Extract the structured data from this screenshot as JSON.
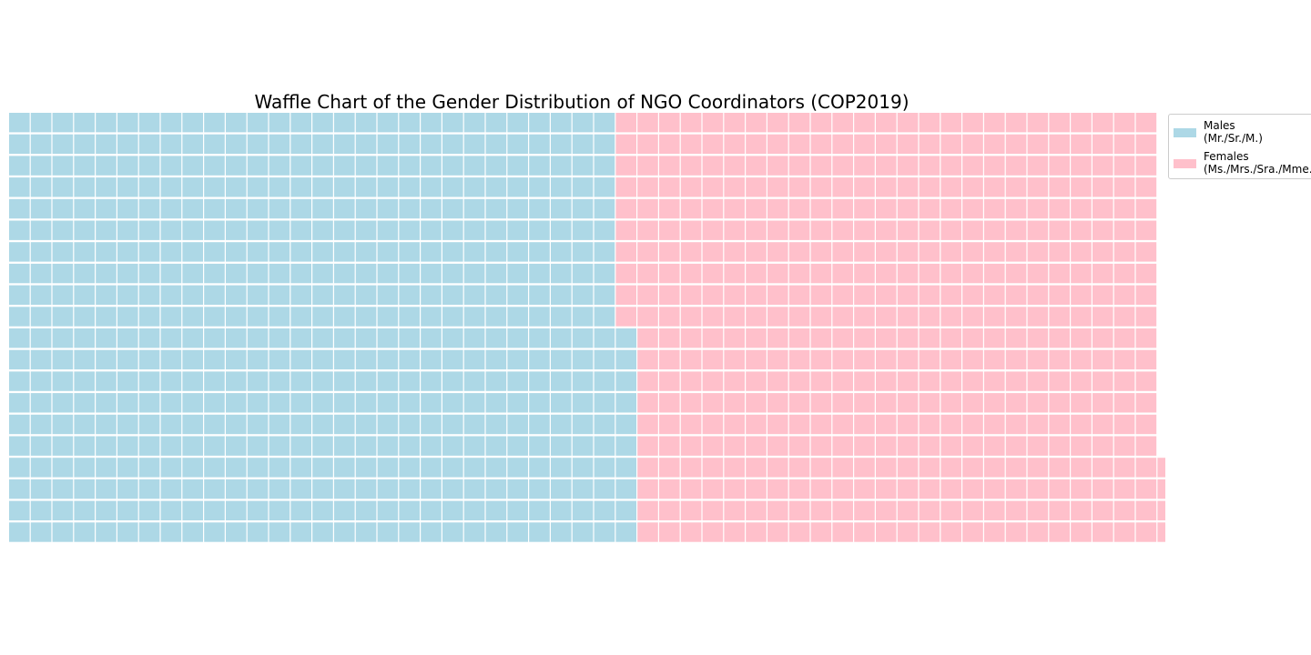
{
  "chart_data": {
    "type": "waffle",
    "title": "Waffle Chart of the Gender Distribution of NGO Coordinators (COP2019)",
    "rows": 20,
    "series": [
      {
        "name": "Males\n(Mr./Sr./M.)",
        "value": 570,
        "color": "#add8e6"
      },
      {
        "name": "Females\n(Ms./Mrs./Sra./Mme.)",
        "value": 494,
        "color": "#ffc0cb"
      }
    ],
    "legend_position": "upper-right-outside",
    "grid": false
  }
}
